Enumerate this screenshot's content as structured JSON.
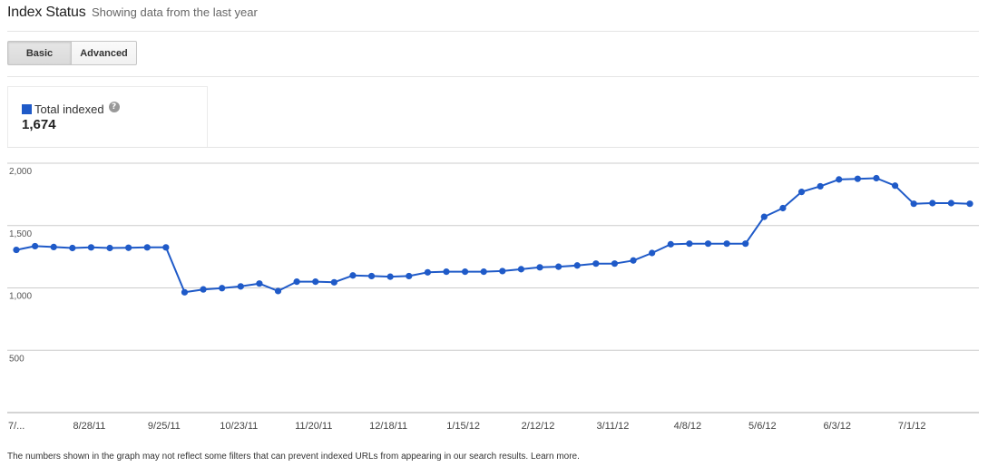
{
  "header": {
    "title": "Index Status",
    "subtitle": "Showing data from the last year"
  },
  "tabs": [
    {
      "label": "Basic",
      "active": true
    },
    {
      "label": "Advanced",
      "active": false
    }
  ],
  "metric": {
    "legend_label": "Total indexed",
    "legend_color": "#1f5ac8",
    "help_icon": "question-mark-icon",
    "help_glyph": "?",
    "value": "1,674"
  },
  "footnote": {
    "text": "The numbers shown in the graph may not reflect some filters that can prevent indexed URLs from appearing in our search results.",
    "link": "Learn more."
  },
  "chart_data": {
    "type": "line",
    "title": "",
    "xlabel": "",
    "ylabel": "",
    "ylim": [
      0,
      2000
    ],
    "y_ticks": [
      "2,000",
      "1,500",
      "1,000",
      "500"
    ],
    "y_tick_values": [
      2000,
      1500,
      1000,
      500
    ],
    "x_tick_labels": [
      "7/...",
      "8/28/11",
      "9/25/11",
      "10/23/11",
      "11/20/11",
      "12/18/11",
      "1/15/12",
      "2/12/12",
      "3/11/12",
      "4/8/12",
      "5/6/12",
      "6/3/12",
      "7/1/12"
    ],
    "x_tick_indices": [
      0,
      4,
      8,
      12,
      16,
      20,
      24,
      28,
      32,
      36,
      40,
      44,
      48
    ],
    "grid": true,
    "legend": "none",
    "line_color": "#1f5ac8",
    "series": [
      {
        "name": "Total indexed",
        "values": [
          1305,
          1335,
          1328,
          1320,
          1325,
          1320,
          1322,
          1325,
          1325,
          965,
          988,
          998,
          1012,
          1035,
          975,
          1050,
          1050,
          1045,
          1100,
          1095,
          1090,
          1095,
          1125,
          1130,
          1130,
          1130,
          1135,
          1150,
          1165,
          1170,
          1180,
          1195,
          1195,
          1220,
          1280,
          1350,
          1355,
          1355,
          1355,
          1355,
          1570,
          1640,
          1770,
          1815,
          1870,
          1875,
          1880,
          1820,
          1675,
          1680,
          1680,
          1675
        ]
      }
    ]
  }
}
